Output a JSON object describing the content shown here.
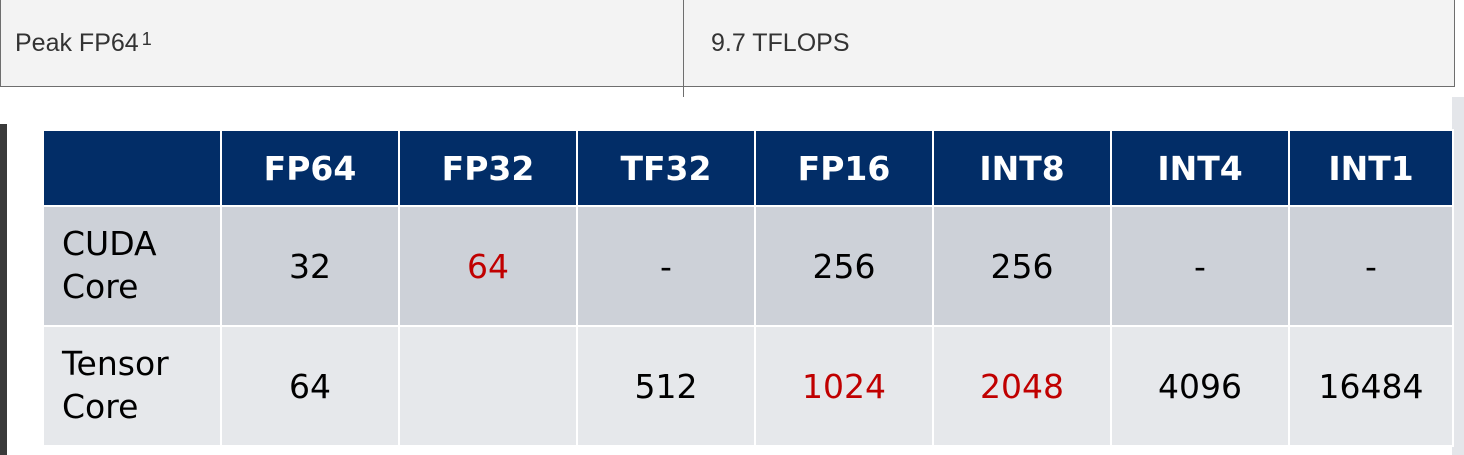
{
  "spec_row": {
    "name": "Peak FP64",
    "footnote": "1",
    "value": "9.7 TFLOPS"
  },
  "table": {
    "columns": [
      "",
      "FP64",
      "FP32",
      "TF32",
      "FP16",
      "INT8",
      "INT4",
      "INT1"
    ],
    "rows": [
      {
        "label_line1": "CUDA",
        "label_line2": "Core",
        "cells": [
          "32",
          "64",
          "-",
          "256",
          "256",
          "-",
          "-"
        ]
      },
      {
        "label_line1": "Tensor",
        "label_line2": "Core",
        "cells": [
          "64",
          "",
          "512",
          "1024",
          "2048",
          "4096",
          "16484"
        ]
      }
    ]
  },
  "colors": {
    "header_bg": "#022d67",
    "header_text": "#ffffff",
    "highlight_text": "#c00000",
    "row1_bg": "#cdd1d8",
    "row2_bg": "#e6e8eb"
  }
}
